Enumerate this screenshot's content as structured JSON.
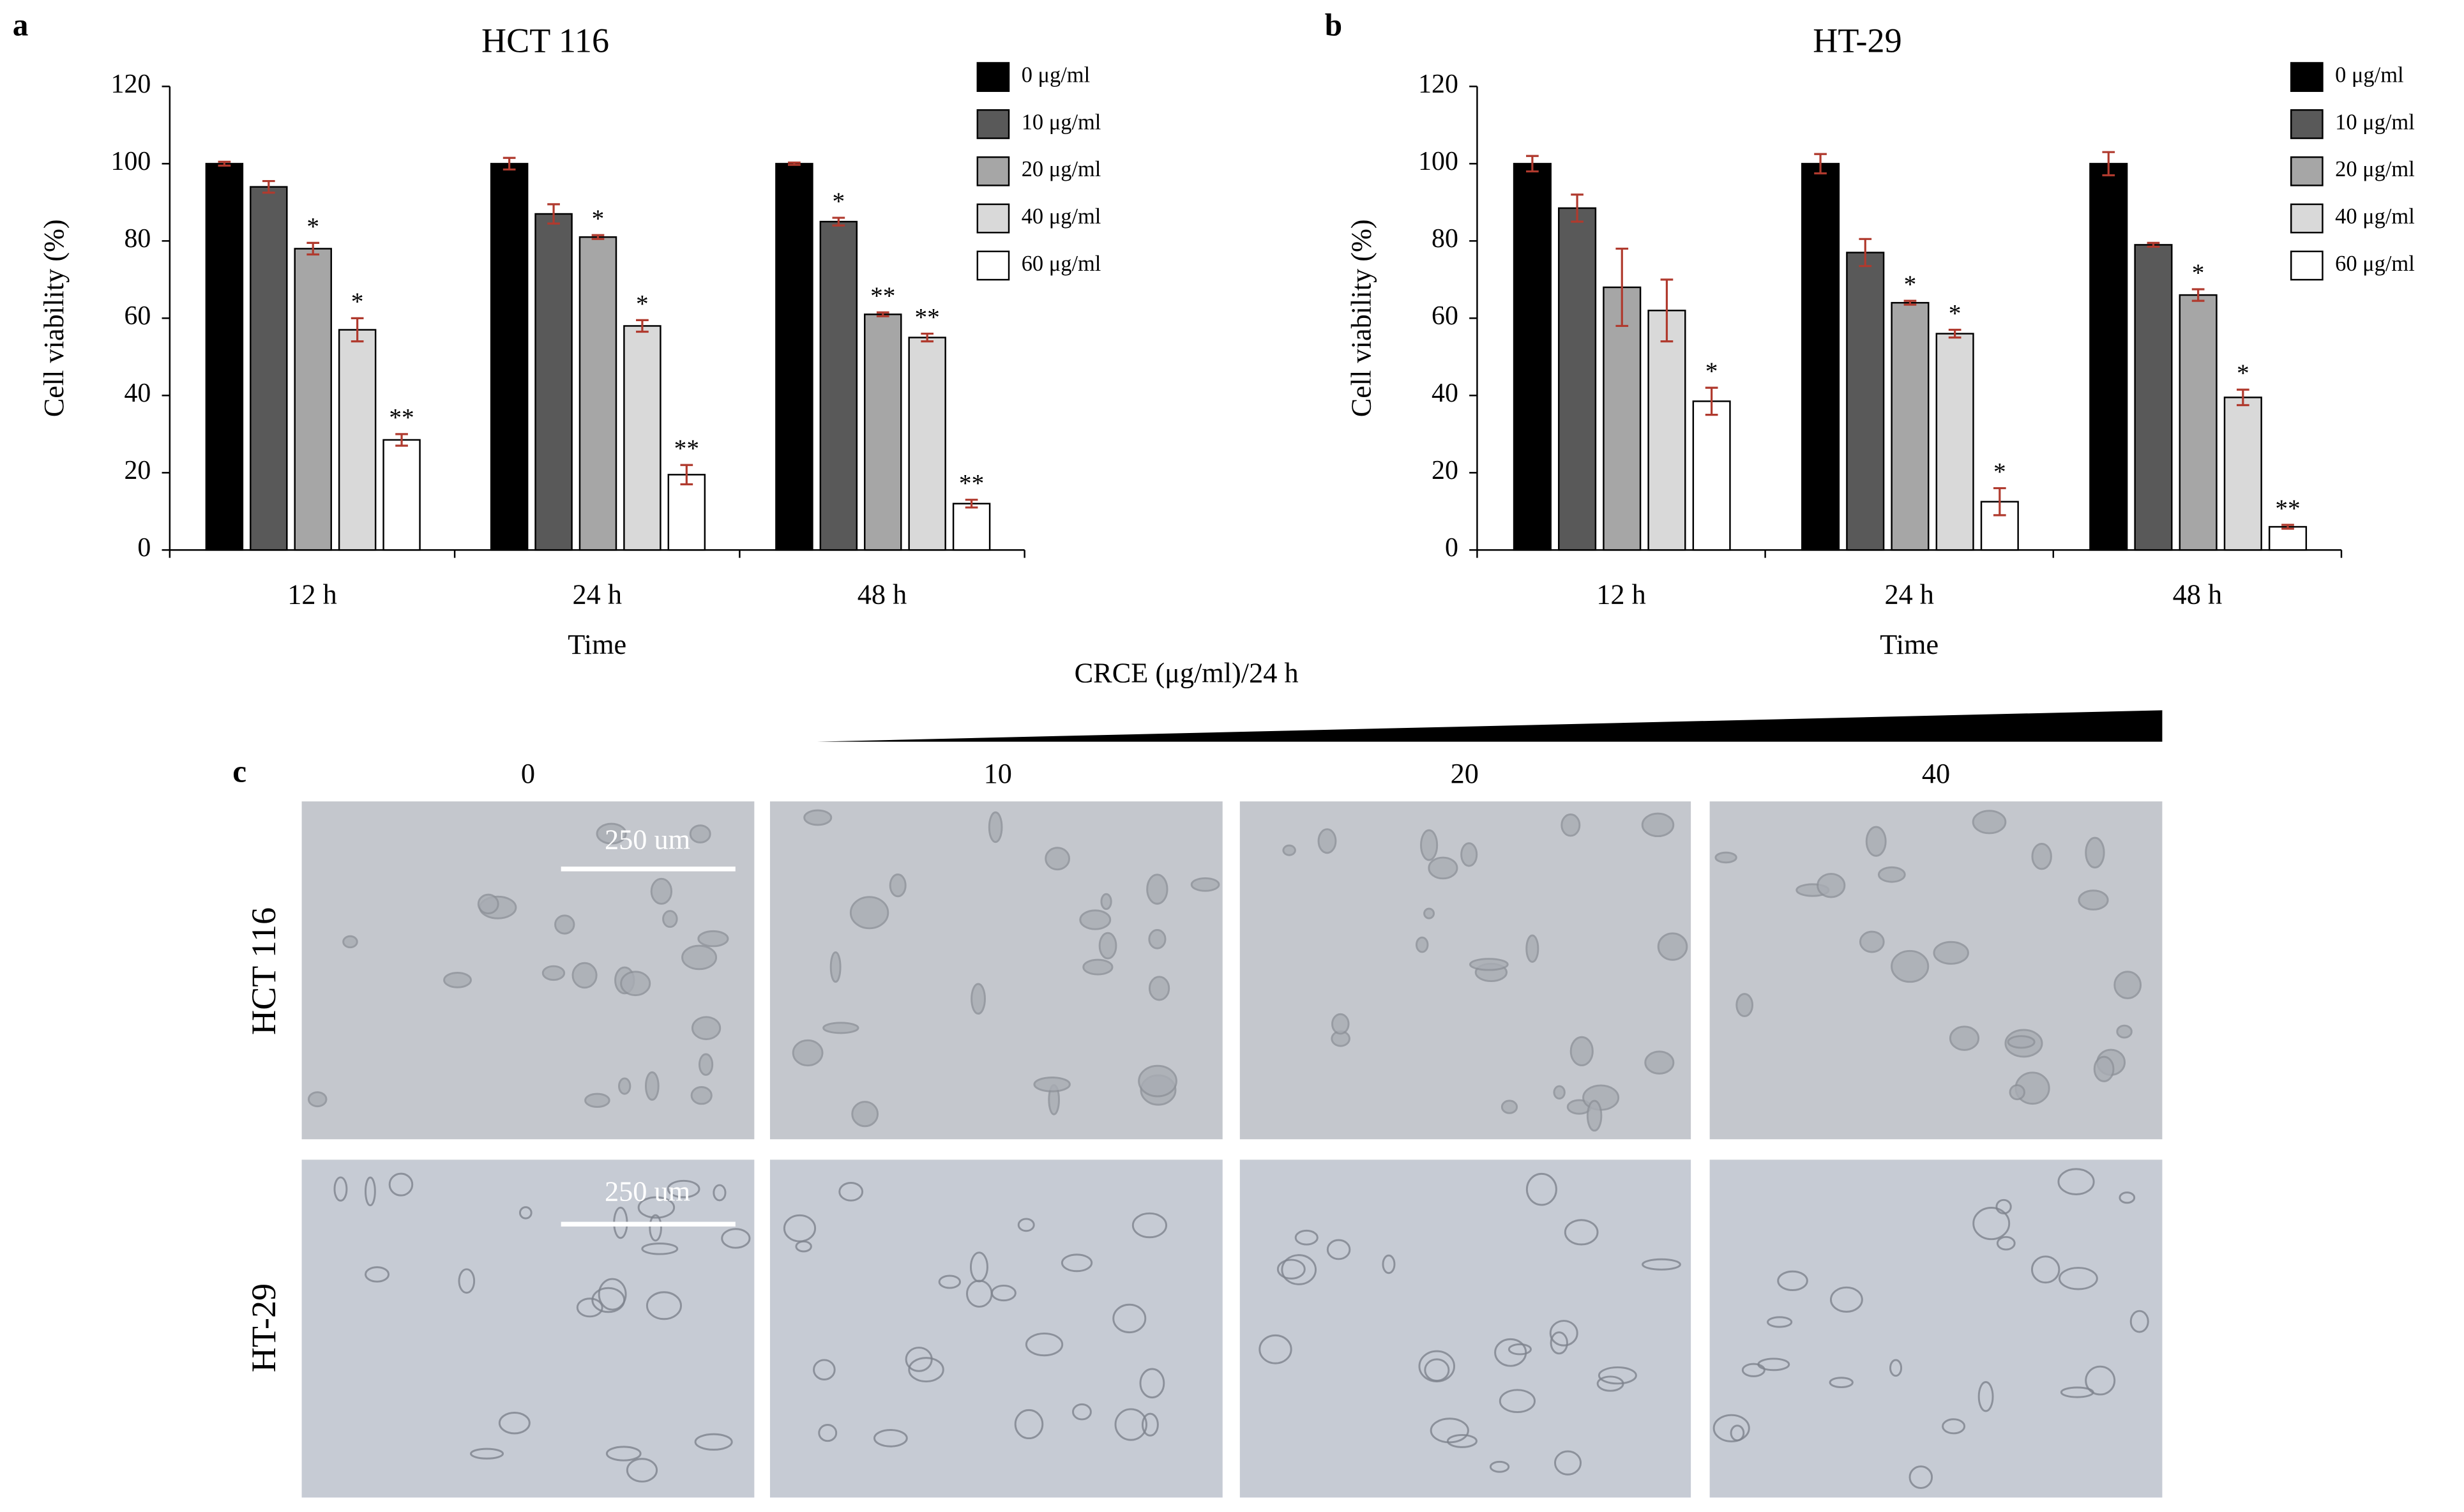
{
  "chart_data": [
    {
      "panel": "a",
      "type": "bar",
      "title": "HCT 116",
      "xlabel": "Time",
      "ylabel": "Cell viability  (%)",
      "categories": [
        "12 h",
        "24 h",
        "48 h"
      ],
      "ylim": [
        0,
        120
      ],
      "yticks": [
        0,
        20,
        40,
        60,
        80,
        100,
        120
      ],
      "legend": "upper right",
      "error_color": "#b03a2e",
      "series": [
        {
          "name": "0 μg/ml",
          "color": "#000000",
          "values": [
            100,
            100,
            100
          ],
          "errors": [
            0.5,
            1.5,
            0.3
          ],
          "annotations": [
            null,
            null,
            null
          ]
        },
        {
          "name": "10  μg/ml",
          "color": "#595959",
          "values": [
            94,
            87,
            85
          ],
          "errors": [
            1.5,
            2.5,
            1
          ],
          "annotations": [
            null,
            null,
            "*"
          ]
        },
        {
          "name": "20  μg/ml",
          "color": "#a6a6a6",
          "values": [
            78,
            81,
            61
          ],
          "errors": [
            1.5,
            0.5,
            0.5
          ],
          "annotations": [
            "*",
            "*",
            "**"
          ]
        },
        {
          "name": "40  μg/ml",
          "color": "#d9d9d9",
          "values": [
            57,
            58,
            55
          ],
          "errors": [
            3,
            1.5,
            1
          ],
          "annotations": [
            "*",
            "*",
            "**"
          ]
        },
        {
          "name": "60  μg/ml",
          "color": "#ffffff",
          "values": [
            28.5,
            19.5,
            12
          ],
          "errors": [
            1.5,
            2.5,
            1
          ],
          "annotations": [
            "**",
            "**",
            "**"
          ]
        }
      ]
    },
    {
      "panel": "b",
      "type": "bar",
      "title": "HT-29",
      "xlabel": "Time",
      "ylabel": "Cell viability  (%)",
      "categories": [
        "12 h",
        "24 h",
        "48 h"
      ],
      "ylim": [
        0,
        120
      ],
      "yticks": [
        0,
        20,
        40,
        60,
        80,
        100,
        120
      ],
      "legend": "upper right",
      "error_color": "#b03a2e",
      "series": [
        {
          "name": "0  μg/ml",
          "color": "#000000",
          "values": [
            100,
            100,
            100
          ],
          "errors": [
            2,
            2.5,
            3
          ],
          "annotations": [
            null,
            null,
            null
          ]
        },
        {
          "name": "10  μg/ml",
          "color": "#595959",
          "values": [
            88.5,
            77,
            79
          ],
          "errors": [
            3.5,
            3.5,
            0.5
          ],
          "annotations": [
            null,
            null,
            null
          ]
        },
        {
          "name": "20  μg/ml",
          "color": "#a6a6a6",
          "values": [
            68,
            64,
            66
          ],
          "errors": [
            10,
            0.5,
            1.5
          ],
          "annotations": [
            null,
            "*",
            "*"
          ]
        },
        {
          "name": "40  μg/ml",
          "color": "#d9d9d9",
          "values": [
            62,
            56,
            39.5
          ],
          "errors": [
            8,
            1,
            2
          ],
          "annotations": [
            null,
            "*",
            "*"
          ]
        },
        {
          "name": "60  μg/ml",
          "color": "#ffffff",
          "values": [
            38.5,
            12.5,
            6
          ],
          "errors": [
            3.5,
            3.5,
            0.5
          ],
          "annotations": [
            "*",
            "*",
            "**"
          ]
        }
      ]
    }
  ],
  "panel_c": {
    "panel": "c",
    "title": "CRCE (μg/ml)/24  h",
    "columns": [
      "0",
      "10",
      "20",
      "40"
    ],
    "rows": [
      {
        "label": "HCT 116",
        "scale_bar": "250 um"
      },
      {
        "label": "HT-29",
        "scale_bar": "250 um"
      }
    ]
  }
}
